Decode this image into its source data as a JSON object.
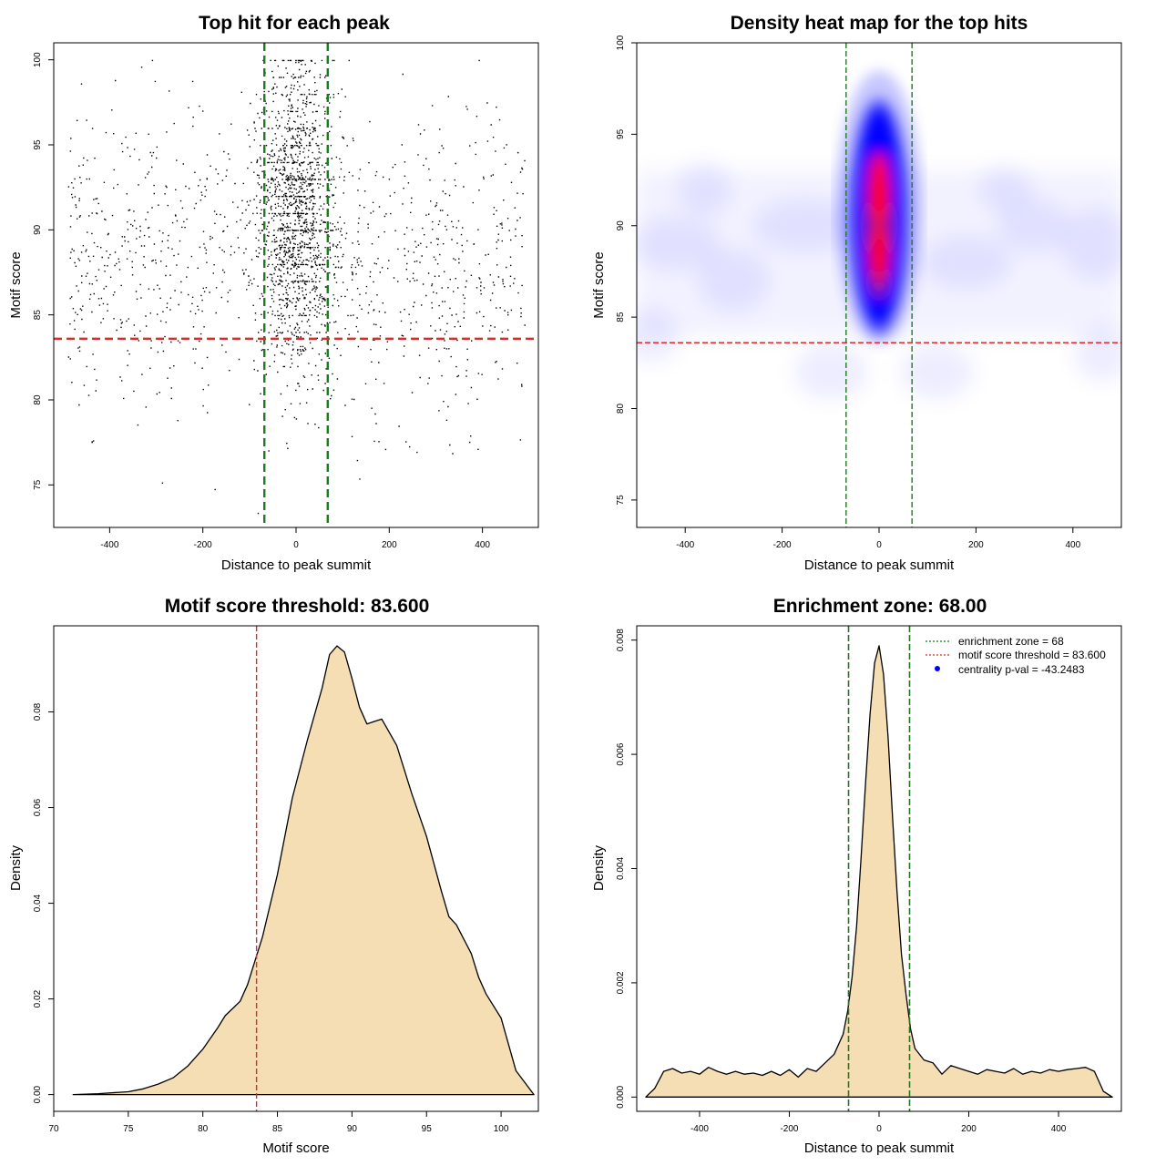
{
  "colors": {
    "threshold_line": "#e0282f",
    "zone_line": "#1f7a1f",
    "density_fill": "#f5deb3",
    "heat_low": "#ffffff",
    "heat_mid": "#0000ff",
    "heat_high": "#ff0000",
    "point": "#000000",
    "pval_marker": "#0000ff"
  },
  "chart_data": [
    {
      "type": "scatter",
      "title": "Top hit for each peak",
      "xlabel": "Distance to peak summit",
      "ylabel": "Motif score",
      "xlim": [
        -520,
        520
      ],
      "ylim": [
        72.5,
        101
      ],
      "xticks": [
        -400,
        -200,
        0,
        200,
        400
      ],
      "yticks": [
        75,
        80,
        85,
        90,
        95,
        100
      ],
      "grid": false,
      "points_description_summary": {
        "n_points_approx": 3000,
        "center_spread_sd": 40,
        "background_range_x": [
          -490,
          490
        ],
        "center_score_mean": 91,
        "center_score_sd": 4.5,
        "background_score_mean": 88,
        "background_score_sd": 4.5
      },
      "h_lines": [
        {
          "y": 83.6,
          "role": "threshold"
        }
      ],
      "v_lines": [
        {
          "x": -68,
          "role": "zone"
        },
        {
          "x": 68,
          "role": "zone"
        }
      ]
    },
    {
      "type": "heatmap",
      "title": "Density heat map for the top hits",
      "xlabel": "Distance to peak summit",
      "ylabel": "Motif score",
      "xlim": [
        -500,
        500
      ],
      "ylim": [
        73.5,
        100
      ],
      "xticks": [
        -400,
        -200,
        0,
        200,
        400
      ],
      "yticks": [
        75,
        80,
        85,
        90,
        95,
        100
      ],
      "grid": false,
      "hotspot": {
        "x": 0,
        "y_range": [
          86,
          94
        ],
        "peak_y": 92
      },
      "h_lines": [
        {
          "y": 83.6,
          "role": "threshold"
        }
      ],
      "v_lines": [
        {
          "x": -68,
          "role": "zone"
        },
        {
          "x": 68,
          "role": "zone"
        }
      ]
    },
    {
      "type": "area",
      "title": "Motif score threshold: 83.600",
      "xlabel": "Motif score",
      "ylabel": "Density",
      "xlim": [
        70,
        102.5
      ],
      "ylim": [
        -0.0035,
        0.098
      ],
      "xticks": [
        70,
        75,
        80,
        85,
        90,
        95,
        100
      ],
      "yticks": [
        0.0,
        0.02,
        0.04,
        0.06,
        0.08
      ],
      "ytick_labels": [
        "0.00",
        "0.02",
        "0.04",
        "0.06",
        "0.08"
      ],
      "grid": false,
      "x": [
        71.3,
        73,
        75,
        76,
        77,
        78,
        79,
        80,
        81,
        81.5,
        82,
        82.5,
        83,
        84,
        85,
        86,
        87,
        88,
        88.5,
        89,
        89.5,
        90,
        90.5,
        91,
        91.5,
        92,
        93,
        94,
        95,
        96,
        96.5,
        97,
        98,
        98.5,
        99,
        100,
        101,
        102.2
      ],
      "y": [
        0.0,
        0.0002,
        0.0006,
        0.0012,
        0.0022,
        0.0035,
        0.006,
        0.0095,
        0.014,
        0.0165,
        0.018,
        0.0195,
        0.023,
        0.033,
        0.046,
        0.062,
        0.074,
        0.085,
        0.092,
        0.0938,
        0.0925,
        0.087,
        0.081,
        0.0775,
        0.078,
        0.0785,
        0.073,
        0.063,
        0.054,
        0.0425,
        0.0372,
        0.0355,
        0.0295,
        0.0245,
        0.021,
        0.016,
        0.005,
        0.0
      ],
      "v_lines": [
        {
          "x": 83.6,
          "role": "threshold"
        }
      ]
    },
    {
      "type": "area",
      "title": "Enrichment zone: 68.00",
      "xlabel": "Distance to peak summit",
      "ylabel": "Density",
      "xlim": [
        -540,
        540
      ],
      "ylim": [
        -0.00025,
        0.00825
      ],
      "xticks": [
        -400,
        -200,
        0,
        200,
        400
      ],
      "yticks": [
        0.0,
        0.002,
        0.004,
        0.006,
        0.008
      ],
      "ytick_labels": [
        "0.000",
        "0.002",
        "0.004",
        "0.006",
        "0.008"
      ],
      "grid": false,
      "x": [
        -520,
        -500,
        -480,
        -460,
        -440,
        -420,
        -400,
        -380,
        -360,
        -340,
        -320,
        -300,
        -280,
        -260,
        -240,
        -220,
        -200,
        -180,
        -160,
        -140,
        -120,
        -100,
        -80,
        -70,
        -60,
        -50,
        -40,
        -30,
        -20,
        -10,
        0,
        10,
        20,
        30,
        40,
        50,
        60,
        70,
        80,
        100,
        120,
        140,
        160,
        180,
        200,
        220,
        240,
        260,
        280,
        300,
        320,
        340,
        360,
        380,
        400,
        420,
        440,
        460,
        480,
        500,
        520
      ],
      "y": [
        0.0,
        0.00015,
        0.00045,
        0.0005,
        0.00042,
        0.00045,
        0.0004,
        0.00052,
        0.00045,
        0.0004,
        0.00045,
        0.0004,
        0.00042,
        0.00038,
        0.00045,
        0.00038,
        0.00048,
        0.00035,
        0.0005,
        0.00045,
        0.0006,
        0.00075,
        0.0011,
        0.0015,
        0.0021,
        0.003,
        0.0042,
        0.0055,
        0.0067,
        0.0076,
        0.0079,
        0.0074,
        0.0063,
        0.0049,
        0.0036,
        0.0025,
        0.0018,
        0.0012,
        0.00085,
        0.00065,
        0.0006,
        0.0004,
        0.00055,
        0.0005,
        0.00045,
        0.0004,
        0.00048,
        0.00045,
        0.00042,
        0.0005,
        0.0004,
        0.00045,
        0.00042,
        0.00048,
        0.00045,
        0.00048,
        0.0005,
        0.00052,
        0.00045,
        0.0001,
        0.0
      ],
      "v_lines": [
        {
          "x": -68,
          "role": "zone"
        },
        {
          "x": 68,
          "role": "zone"
        }
      ],
      "legend": {
        "placement": "top-right",
        "entries": [
          {
            "label": "enrichment zone = 68",
            "style": "dotted-green"
          },
          {
            "label": "motif score threshold = 83.600",
            "style": "dotted-red"
          },
          {
            "label": "centrality p-val = -43.2483",
            "style": "blue-dot"
          }
        ]
      }
    }
  ]
}
